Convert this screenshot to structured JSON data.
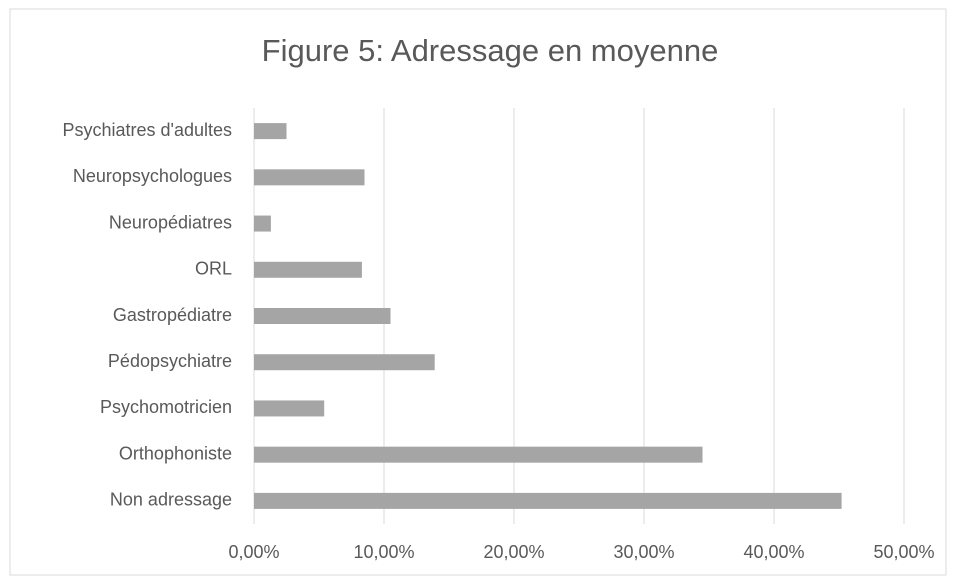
{
  "chart_data": {
    "type": "bar",
    "orientation": "horizontal",
    "title": "Figure 5: Adressage en moyenne",
    "categories": [
      "Psychiatres d'adultes",
      "Neuropsychologues",
      "Neuropédiatres",
      "ORL",
      "Gastropédiatre",
      "Pédopsychiatre",
      "Psychomotricien",
      "Orthophoniste",
      "Non adressage"
    ],
    "values": [
      2.5,
      8.5,
      1.3,
      8.3,
      10.5,
      13.9,
      5.4,
      34.5,
      45.2
    ],
    "color": "#a5a5a5",
    "xlim": [
      0,
      50
    ],
    "xticks": [
      {
        "value": 0,
        "label": "0,00%"
      },
      {
        "value": 10,
        "label": "10,00%"
      },
      {
        "value": 20,
        "label": "20,00%"
      },
      {
        "value": 30,
        "label": "30,00%"
      },
      {
        "value": 40,
        "label": "40,00%"
      },
      {
        "value": 50,
        "label": "50,00%"
      }
    ],
    "grid": true
  }
}
